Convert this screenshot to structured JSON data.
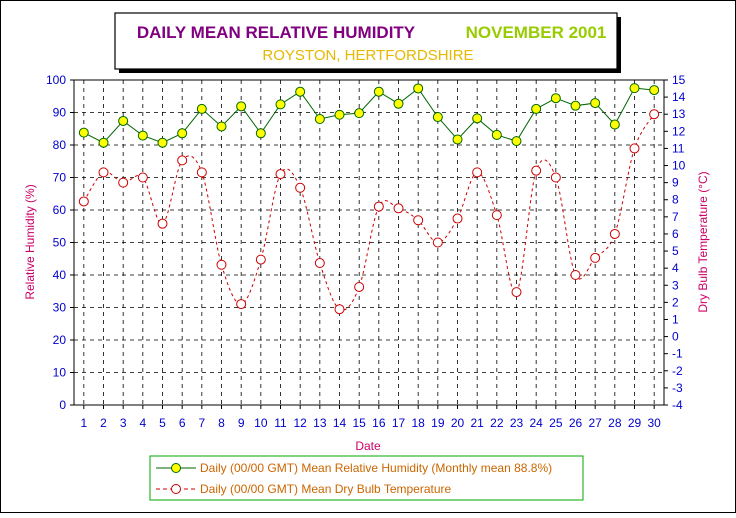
{
  "chart_data": {
    "type": "line",
    "title": "DAILY MEAN RELATIVE HUMIDITY",
    "title_month": "NOVEMBER 2001",
    "subtitle": "ROYSTON, HERTFORDSHIRE",
    "xlabel": "Date",
    "ylabel": "Relative Humidity (%)",
    "y2label": "Dry Bulb Temperature (°C)",
    "x": [
      1,
      2,
      3,
      4,
      5,
      6,
      7,
      8,
      9,
      10,
      11,
      12,
      13,
      14,
      15,
      16,
      17,
      18,
      19,
      20,
      21,
      22,
      23,
      24,
      25,
      26,
      27,
      28,
      29,
      30
    ],
    "xlim": [
      0.5,
      30.5
    ],
    "ylim": [
      0,
      100
    ],
    "y_ticks": [
      0,
      10,
      20,
      30,
      40,
      50,
      60,
      70,
      80,
      90,
      100
    ],
    "y2lim": [
      -4,
      15
    ],
    "y2_ticks": [
      -4,
      -3,
      -2,
      -1,
      0,
      1,
      2,
      3,
      4,
      5,
      6,
      7,
      8,
      9,
      10,
      11,
      12,
      13,
      14,
      15
    ],
    "grid": true,
    "legend_position": "bottom",
    "series": [
      {
        "name": "Daily (00/00 GMT) Mean Relative Humidity (Monthly mean 88.8%)",
        "axis": "left",
        "color": "#006600",
        "marker_fill": "#ffff00",
        "line_style": "solid",
        "values": [
          83.8,
          80.7,
          87.4,
          82.9,
          80.7,
          83.6,
          91.1,
          85.7,
          91.9,
          83.6,
          92.5,
          96.4,
          88.0,
          89.3,
          89.8,
          96.4,
          92.7,
          97.4,
          88.6,
          81.7,
          88.2,
          83.1,
          81.2,
          91.1,
          94.4,
          92.1,
          92.9,
          86.3,
          97.5,
          96.9
        ]
      },
      {
        "name": "Daily (00/00 GMT) Mean Dry Bulb Temperature",
        "axis": "right",
        "color": "#cc0000",
        "marker_fill": "#ffffff",
        "line_style": "dashed",
        "values": [
          7.9,
          9.6,
          9.0,
          9.3,
          6.6,
          10.3,
          9.6,
          4.2,
          1.9,
          4.5,
          9.5,
          8.7,
          4.3,
          1.6,
          2.9,
          7.6,
          7.5,
          6.8,
          5.5,
          6.9,
          9.6,
          7.1,
          2.6,
          9.7,
          9.3,
          3.6,
          4.6,
          6.0,
          11.0,
          13.0
        ]
      }
    ]
  },
  "colors": {
    "background": "#ffffff",
    "frame_border": "#000000",
    "title_primary": "#800080",
    "title_month": "#99cc00",
    "subtitle": "#e6b800",
    "left_axis_text": "#cc0066",
    "right_axis_text": "#cc0066",
    "tick_label_text": "#0000cc",
    "grid_line": "#000000",
    "legend_text": "#cc6600",
    "legend_border": "#00aa00",
    "xlabel_text": "#cc0066"
  }
}
